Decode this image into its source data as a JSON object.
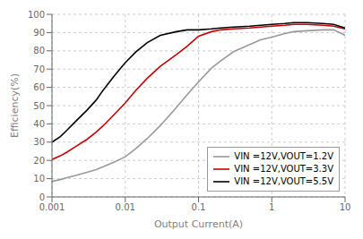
{
  "chart_data": {
    "type": "line",
    "xlabel": "Output Current(A)",
    "ylabel": "Efficiency(%)",
    "log": "x",
    "grid": true,
    "legend": "lower right",
    "xlim": [
      0.001,
      10
    ],
    "xticks": [
      0.001,
      0.01,
      0.1,
      1,
      10
    ],
    "ylim": [
      0,
      100
    ],
    "yticks": [
      0,
      10,
      20,
      30,
      40,
      50,
      60,
      70,
      80,
      90,
      100
    ],
    "x": [
      0.001,
      0.0013,
      0.0016,
      0.002,
      0.003,
      0.004,
      0.005,
      0.007,
      0.01,
      0.014,
      0.02,
      0.03,
      0.05,
      0.07,
      0.1,
      0.15,
      0.2,
      0.3,
      0.5,
      0.7,
      1.0,
      1.5,
      2.0,
      3.0,
      5.0,
      7.0,
      10.0
    ],
    "series": [
      {
        "name": "VIN =12V,VOUT=1.2V",
        "color": "#999999",
        "values": [
          8.5,
          9.5,
          10.5,
          11.5,
          13.5,
          15.0,
          16.5,
          19.0,
          22.0,
          26.5,
          32.0,
          39.0,
          49.0,
          56.0,
          63.0,
          70.5,
          74.5,
          79.5,
          83.5,
          86.0,
          87.5,
          89.5,
          90.5,
          91.0,
          91.5,
          91.5,
          88.5
        ]
      },
      {
        "name": "VIN =12V,VOUT=3.3V",
        "color": "#cc0000",
        "values": [
          20.5,
          22.5,
          24.5,
          27.0,
          31.5,
          35.5,
          39.0,
          45.0,
          51.5,
          58.5,
          65.0,
          71.5,
          78.0,
          82.5,
          88.0,
          90.5,
          91.5,
          92.0,
          92.5,
          93.0,
          93.5,
          94.0,
          94.5,
          94.5,
          94.0,
          93.5,
          92.0
        ]
      },
      {
        "name": "VIN =12V,VOUT=5.5V",
        "color": "#000000",
        "values": [
          30.0,
          33.0,
          36.5,
          40.5,
          47.5,
          53.0,
          58.5,
          66.0,
          73.5,
          79.5,
          84.5,
          88.5,
          90.5,
          91.5,
          91.5,
          92.0,
          92.5,
          93.0,
          93.5,
          94.0,
          94.5,
          95.0,
          95.5,
          95.5,
          95.0,
          94.5,
          92.5
        ]
      }
    ]
  }
}
